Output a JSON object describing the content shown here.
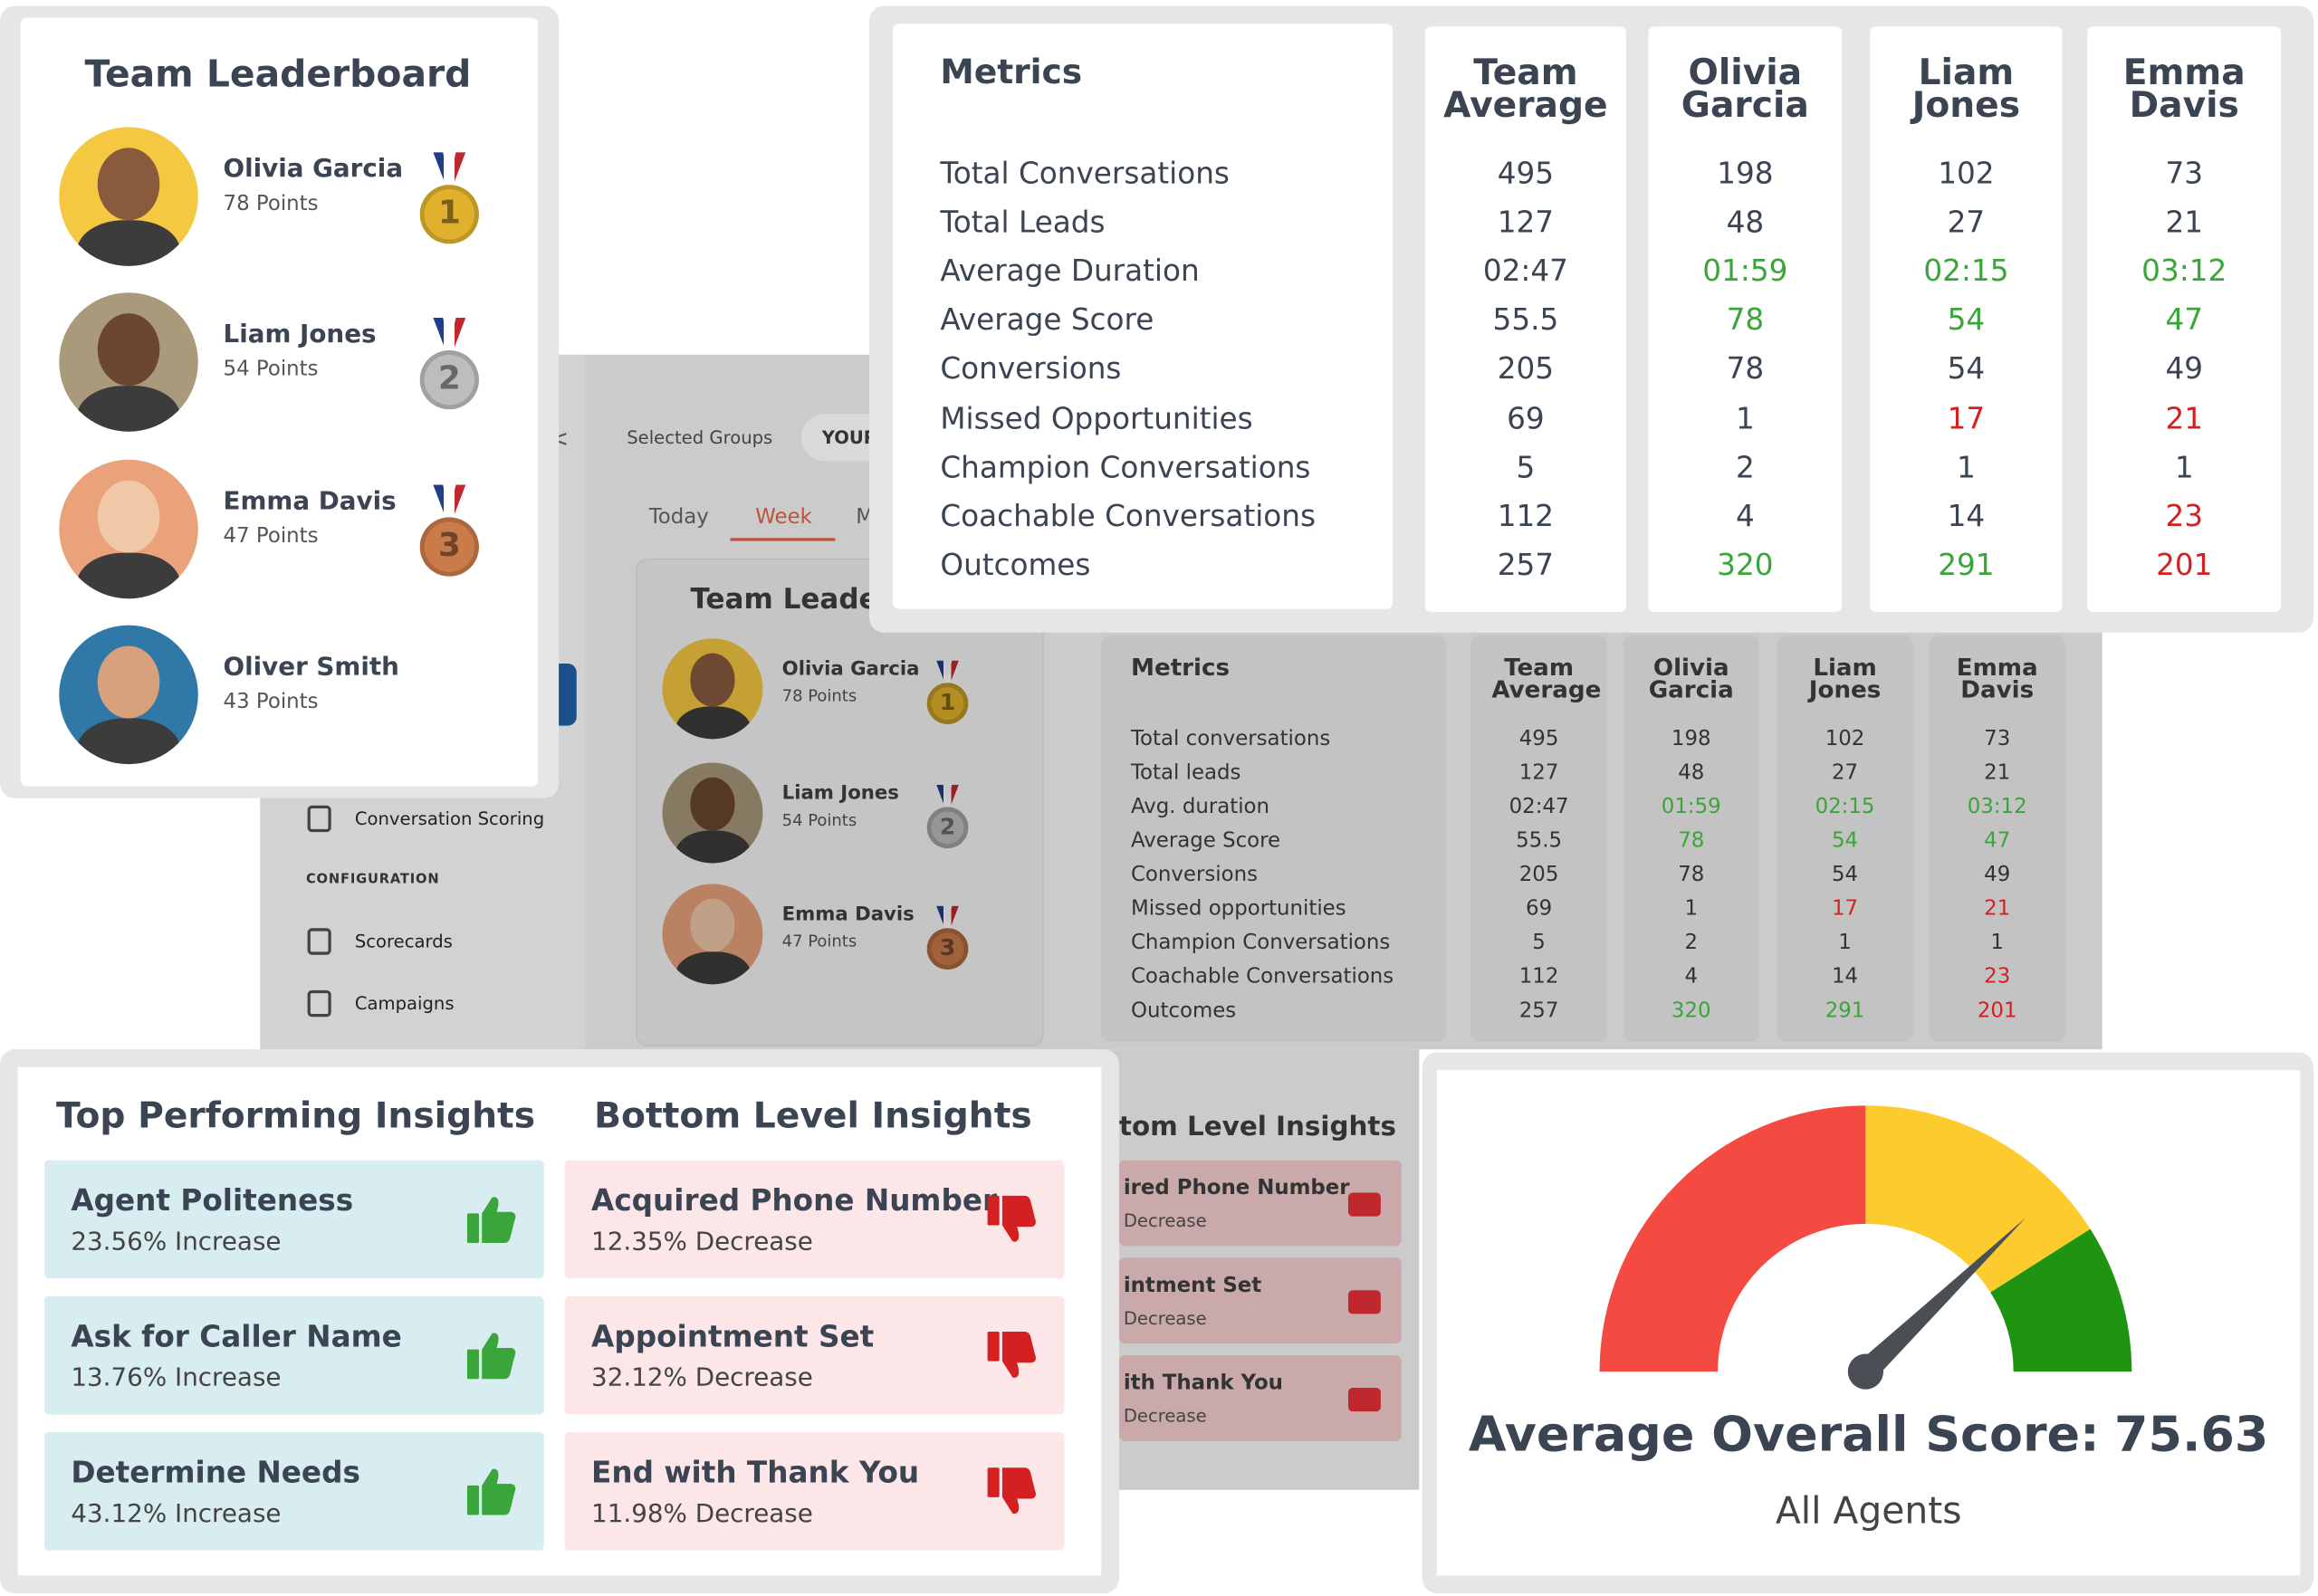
{
  "leaderboard": {
    "title": "Team Leaderboard",
    "entries": [
      {
        "name": "Olivia Garcia",
        "points": "78 Points",
        "rank": "1"
      },
      {
        "name": "Liam Jones",
        "points": "54 Points",
        "rank": "2"
      },
      {
        "name": "Emma Davis",
        "points": "47 Points",
        "rank": "3"
      },
      {
        "name": "Oliver Smith",
        "points": "43 Points"
      }
    ]
  },
  "metrics": {
    "title": "Metrics",
    "columns": [
      "Team Average",
      "Olivia Garcia",
      "Liam Jones",
      "Emma Davis"
    ],
    "rows": [
      {
        "label": "Total Conversations",
        "short": "Total conversations",
        "values": [
          "495",
          "198",
          "102",
          "73"
        ],
        "tones": [
          "neutral",
          "neutral",
          "neutral",
          "neutral"
        ]
      },
      {
        "label": "Total Leads",
        "short": "Total leads",
        "values": [
          "127",
          "48",
          "27",
          "21"
        ],
        "tones": [
          "neutral",
          "neutral",
          "neutral",
          "neutral"
        ]
      },
      {
        "label": "Average Duration",
        "short": "Avg. duration",
        "values": [
          "02:47",
          "01:59",
          "02:15",
          "03:12"
        ],
        "tones": [
          "neutral",
          "good",
          "good",
          "good"
        ]
      },
      {
        "label": "Average Score",
        "short": "Average Score",
        "values": [
          "55.5",
          "78",
          "54",
          "47"
        ],
        "tones": [
          "neutral",
          "good",
          "good",
          "good"
        ]
      },
      {
        "label": "Conversions",
        "short": "Conversions",
        "values": [
          "205",
          "78",
          "54",
          "49"
        ],
        "tones": [
          "neutral",
          "neutral",
          "neutral",
          "neutral"
        ]
      },
      {
        "label": "Missed Opportunities",
        "short": "Missed opportunities",
        "values": [
          "69",
          "1",
          "17",
          "21"
        ],
        "tones": [
          "neutral",
          "neutral",
          "bad",
          "bad"
        ]
      },
      {
        "label": "Champion Conversations",
        "short": "Champion Conversations",
        "values": [
          "5",
          "2",
          "1",
          "1"
        ],
        "tones": [
          "neutral",
          "neutral",
          "neutral",
          "neutral"
        ]
      },
      {
        "label": "Coachable Conversations",
        "short": "Coachable Conversations",
        "values": [
          "112",
          "4",
          "14",
          "23"
        ],
        "tones": [
          "neutral",
          "neutral",
          "neutral",
          "bad"
        ]
      },
      {
        "label": "Outcomes",
        "short": "Outcomes",
        "values": [
          "257",
          "320",
          "291",
          "201"
        ],
        "tones": [
          "neutral",
          "good",
          "good",
          "bad"
        ]
      }
    ]
  },
  "insights": {
    "top": {
      "title": "Top Performing Insights",
      "items": [
        {
          "label": "Agent Politeness",
          "detail": "23.56% Increase"
        },
        {
          "label": "Ask for Caller Name",
          "detail": "13.76% Increase"
        },
        {
          "label": "Determine Needs",
          "detail": "43.12% Increase"
        }
      ]
    },
    "bottom": {
      "title": "Bottom Level Insights",
      "items": [
        {
          "label": "Acquired Phone Number",
          "detail": "12.35% Decrease"
        },
        {
          "label": "Appointment Set",
          "detail": "32.12% Decrease"
        },
        {
          "label": "End with Thank You",
          "detail": "11.98% Decrease"
        }
      ]
    }
  },
  "gauge": {
    "score_label": "Average Overall Score:",
    "score": 75.63,
    "subtitle": "All Agents",
    "range": [
      0,
      100
    ],
    "zones": [
      {
        "from": 0,
        "to": 50,
        "color": "#f44a41"
      },
      {
        "from": 50,
        "to": 82,
        "color": "#fccb2e"
      },
      {
        "from": 82,
        "to": 100,
        "color": "#1f9410"
      }
    ]
  },
  "background": {
    "back_label": "<",
    "filter_label": "Selected Groups",
    "filter_chip": "YOUR",
    "tabs": [
      "Today",
      "Week",
      "M"
    ],
    "leaderboard_title": "Team Leader",
    "section": "CONFIGURATION",
    "nav": [
      "Conversation Scoring",
      "Scorecards",
      "Campaigns"
    ],
    "insights_title": "tom Level Insights",
    "insights": [
      {
        "label": "ired Phone Number",
        "detail": "Decrease"
      },
      {
        "label": "intment Set",
        "detail": "Decrease"
      },
      {
        "label": "ith Thank You",
        "detail": "Decrease"
      }
    ]
  }
}
